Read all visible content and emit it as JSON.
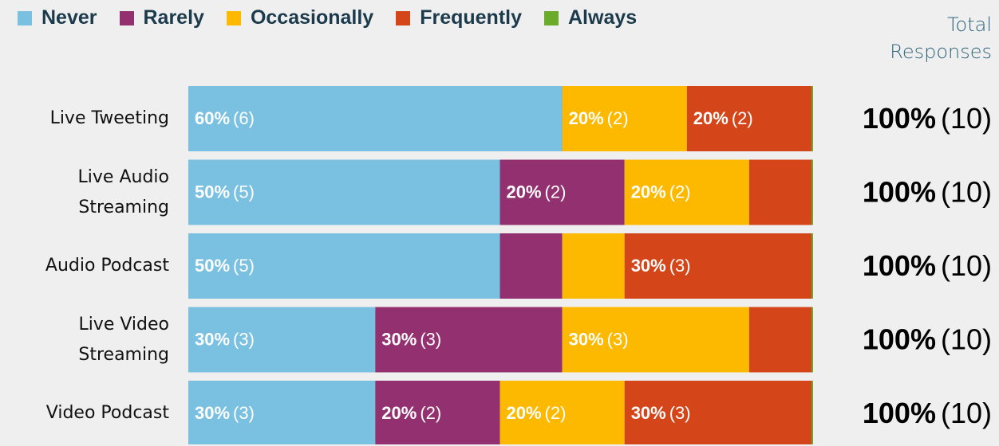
{
  "chart_data": {
    "type": "stacked-bar-horizontal",
    "categories": [
      "Live Tweeting",
      "Live Audio Streaming",
      "Audio Podcast",
      "Live Video Streaming",
      "Video Podcast"
    ],
    "series": [
      {
        "name": "Never",
        "color": "#7ac0e0",
        "values": [
          60,
          50,
          50,
          30,
          30
        ],
        "value_labels": [
          "60%",
          "50%",
          "50%",
          "30%",
          "30%"
        ],
        "count_labels": [
          "(6)",
          "(5)",
          "(5)",
          "(3)",
          "(3)"
        ]
      },
      {
        "name": "Rarely",
        "color": "#93306f",
        "values": [
          0,
          20,
          10,
          30,
          20
        ],
        "value_labels": [
          null,
          "20%",
          null,
          "30%",
          "20%"
        ],
        "count_labels": [
          null,
          "(2)",
          null,
          "(3)",
          "(2)"
        ]
      },
      {
        "name": "Occasionally",
        "color": "#fdb900",
        "values": [
          20,
          20,
          10,
          30,
          20
        ],
        "value_labels": [
          "20%",
          "20%",
          null,
          "30%",
          "20%"
        ],
        "count_labels": [
          "(2)",
          "(2)",
          null,
          "(3)",
          "(2)"
        ]
      },
      {
        "name": "Frequently",
        "color": "#d4461a",
        "values": [
          20,
          10,
          30,
          10,
          30
        ],
        "value_labels": [
          "20%",
          null,
          "30%",
          null,
          "30%"
        ],
        "count_labels": [
          "(2)",
          null,
          "(3)",
          null,
          "(3)"
        ]
      },
      {
        "name": "Always",
        "color": "#6aac2a",
        "values": [
          0,
          0,
          0,
          0,
          0
        ],
        "value_labels": [
          null,
          null,
          null,
          null,
          null
        ],
        "count_labels": [
          null,
          null,
          null,
          null,
          null
        ]
      }
    ],
    "total_title": "Total Responses",
    "totals": {
      "values": [
        100,
        100,
        100,
        100,
        100
      ],
      "value_labels": [
        "100%",
        "100%",
        "100%",
        "100%",
        "100%"
      ],
      "count_labels": [
        "(10)",
        "(10)",
        "(10)",
        "(10)",
        "(10)"
      ]
    },
    "xlim": [
      0,
      100
    ]
  }
}
